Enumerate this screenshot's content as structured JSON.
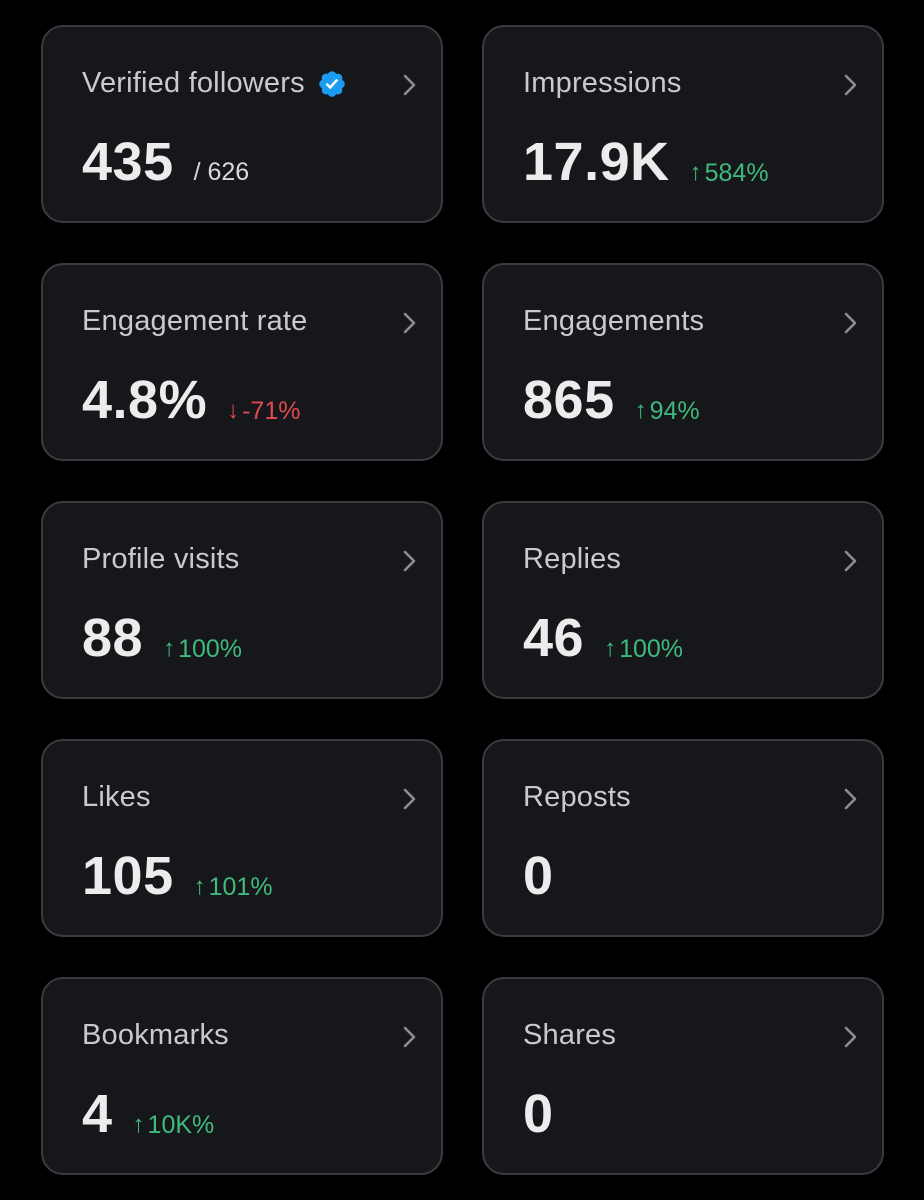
{
  "colors": {
    "background": "#000000",
    "card": "#16171b",
    "card_border": "#3a3b40",
    "up": "#3fb97c",
    "down": "#e2484f",
    "verified": "#1d9bf0"
  },
  "metrics": [
    {
      "label": "Verified followers",
      "value": "435",
      "total": "/ 626",
      "icon": "verified-badge-icon"
    },
    {
      "label": "Impressions",
      "value": "17.9K",
      "change_arrow": "↑",
      "change": "584%",
      "direction": "up"
    },
    {
      "label": "Engagement rate",
      "value": "4.8%",
      "change_arrow": "↓",
      "change": "-71%",
      "direction": "down"
    },
    {
      "label": "Engagements",
      "value": "865",
      "change_arrow": "↑",
      "change": "94%",
      "direction": "up"
    },
    {
      "label": "Profile visits",
      "value": "88",
      "change_arrow": "↑",
      "change": "100%",
      "direction": "up"
    },
    {
      "label": "Replies",
      "value": "46",
      "change_arrow": "↑",
      "change": "100%",
      "direction": "up"
    },
    {
      "label": "Likes",
      "value": "105",
      "change_arrow": "↑",
      "change": "101%",
      "direction": "up"
    },
    {
      "label": "Reposts",
      "value": "0"
    },
    {
      "label": "Bookmarks",
      "value": "4",
      "change_arrow": "↑",
      "change": "10K%",
      "direction": "up"
    },
    {
      "label": "Shares",
      "value": "0"
    }
  ]
}
